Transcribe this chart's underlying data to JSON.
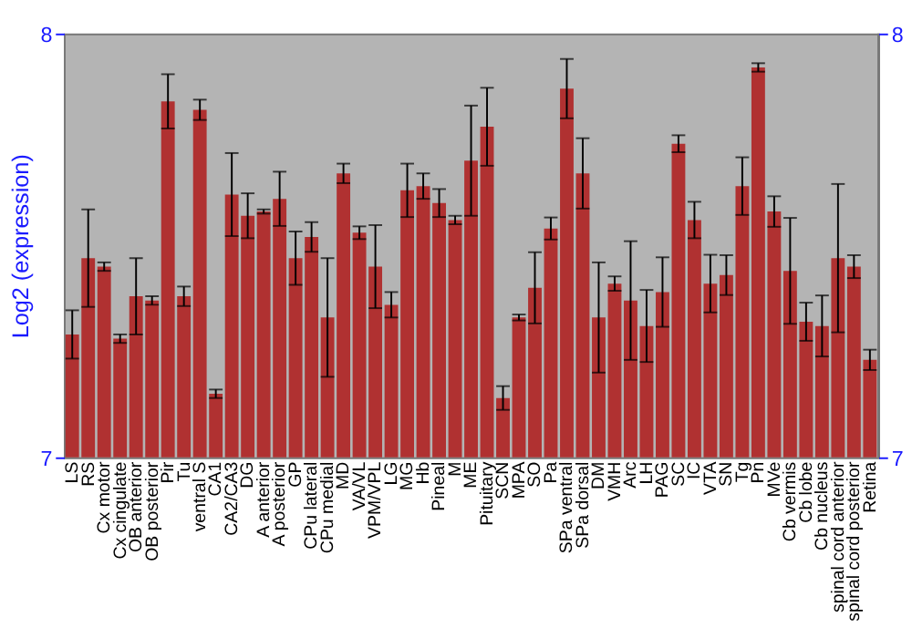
{
  "chart_data": {
    "type": "bar",
    "ylabel": "Log2 (expression)",
    "categories": [
      "LS",
      "RS",
      "Cx motor",
      "Cx cingulate",
      "OB anterior",
      "OB posterior",
      "Pir",
      "Tu",
      "ventral S",
      "CA1",
      "CA2/CA3",
      "DG",
      "A anterior",
      "A posterior",
      "GP",
      "CPu lateral",
      "CPu medial",
      "MD",
      "VA/VL",
      "VPM/VPL",
      "LG",
      "MG",
      "Hb",
      "Pineal",
      "M",
      "ME",
      "Pituitary",
      "SCN",
      "MPA",
      "SO",
      "Pa",
      "SPa ventral",
      "SPa dorsal",
      "DM",
      "VMH",
      "Arc",
      "LH",
      "PAG",
      "SC",
      "IC",
      "VTA",
      "SN",
      "Tg",
      "Pn",
      "MVe",
      "Cb vermis",
      "Cb lobe",
      "Cb nucleus",
      "spinal cord anterior",
      "spinal cord posterior",
      "Retina"
    ],
    "series": [
      {
        "color": "#b02a2a",
        "values": [
          7.29,
          7.47,
          7.45,
          7.28,
          7.38,
          7.37,
          7.84,
          7.38,
          7.82,
          7.15,
          7.62,
          7.57,
          7.58,
          7.61,
          7.47,
          7.52,
          7.33,
          7.67,
          7.53,
          7.45,
          7.36,
          7.63,
          7.64,
          7.6,
          7.56,
          7.7,
          7.78,
          7.14,
          7.33,
          7.4,
          7.54,
          7.87,
          7.67,
          7.33,
          7.41,
          7.37,
          7.31,
          7.39,
          7.74,
          7.56,
          7.41,
          7.43,
          7.64,
          7.92,
          7.58,
          7.44,
          7.32,
          7.31,
          7.47,
          7.45,
          7.23
        ],
        "errors": [
          0.057,
          0.115,
          0.01,
          0.01,
          0.09,
          0.01,
          0.064,
          0.023,
          0.024,
          0.01,
          0.098,
          0.053,
          0.005,
          0.064,
          0.063,
          0.035,
          0.14,
          0.023,
          0.015,
          0.098,
          0.03,
          0.063,
          0.03,
          0.033,
          0.01,
          0.13,
          0.092,
          0.028,
          0.007,
          0.084,
          0.026,
          0.07,
          0.083,
          0.13,
          0.017,
          0.14,
          0.085,
          0.082,
          0.02,
          0.043,
          0.068,
          0.047,
          0.068,
          0.01,
          0.036,
          0.125,
          0.045,
          0.072,
          0.175,
          0.027,
          0.024
        ]
      }
    ],
    "ylim": [
      7,
      8
    ],
    "yticks": [
      7,
      8
    ],
    "y2lim": [
      7,
      8
    ],
    "y2ticks": [
      7,
      8
    ],
    "grid": false,
    "legend": false
  }
}
